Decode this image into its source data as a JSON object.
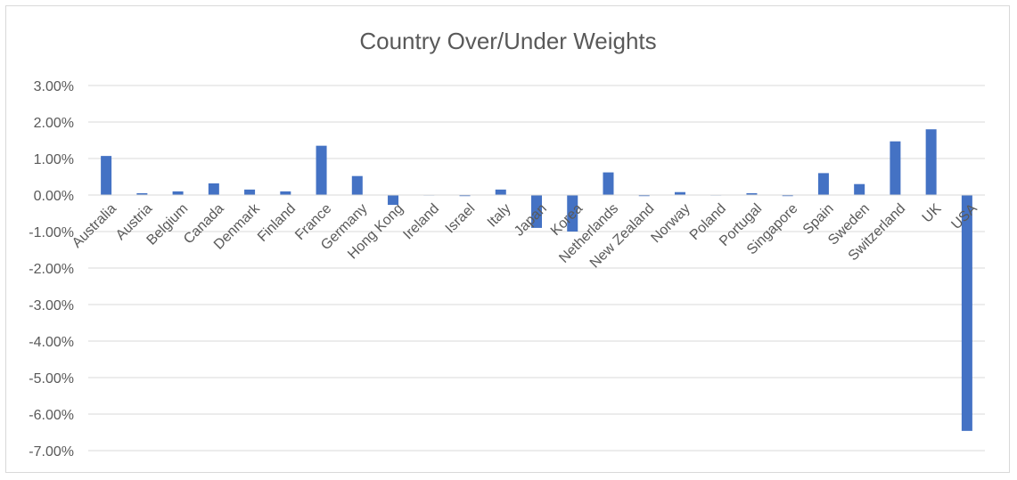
{
  "chart_data": {
    "type": "bar",
    "title": "Country Over/Under Weights",
    "xlabel": "",
    "ylabel": "",
    "ylim": [
      -0.07,
      0.03
    ],
    "y_ticks": [
      0.03,
      0.02,
      0.01,
      0.0,
      -0.01,
      -0.02,
      -0.03,
      -0.04,
      -0.05,
      -0.06,
      -0.07
    ],
    "y_tick_labels": [
      "3.00%",
      "2.00%",
      "1.00%",
      "0.00%",
      "-1.00%",
      "-2.00%",
      "-3.00%",
      "-4.00%",
      "-5.00%",
      "-6.00%",
      "-7.00%"
    ],
    "grid": true,
    "legend": "none",
    "bar_color": "#4472c4",
    "categories": [
      "Australia",
      "Austria",
      "Belgium",
      "Canada",
      "Denmark",
      "Finland",
      "France",
      "Germany",
      "Hong Kong",
      "Ireland",
      "Israel",
      "Italy",
      "Japan",
      "Korea",
      "Netherlands",
      "New Zealand",
      "Norway",
      "Poland",
      "Portugal",
      "Singapore",
      "Spain",
      "Sweden",
      "Switzerland",
      "UK",
      "USA"
    ],
    "values": [
      0.0107,
      0.0005,
      0.001,
      0.0032,
      0.0015,
      0.001,
      0.0135,
      0.0052,
      -0.0027,
      0.0,
      -0.0003,
      0.0015,
      -0.009,
      -0.01,
      0.0062,
      -0.0003,
      0.0008,
      0.0,
      0.0005,
      -0.0003,
      0.006,
      0.003,
      0.0147,
      0.018,
      -0.0646
    ]
  }
}
